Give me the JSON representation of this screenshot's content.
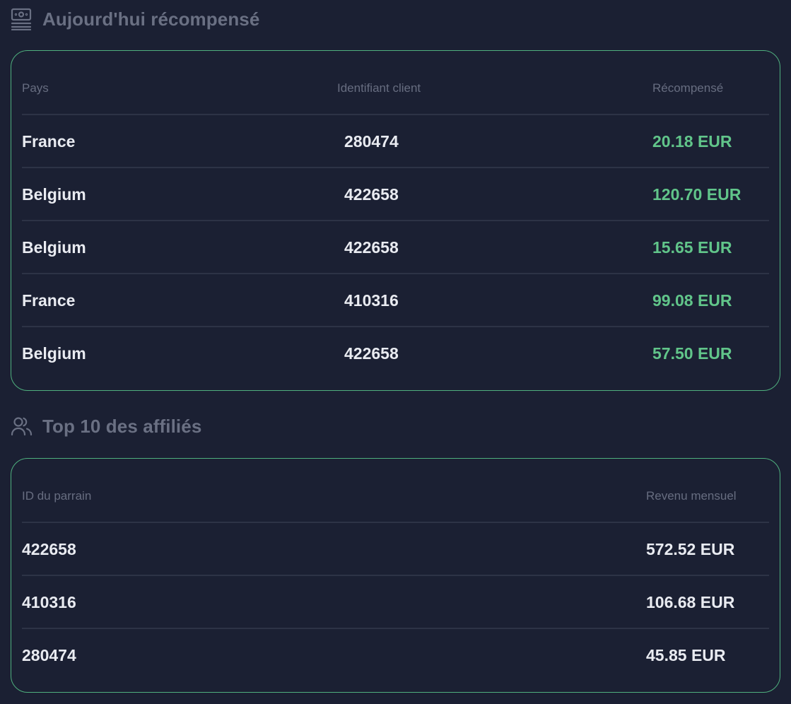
{
  "rewarded": {
    "title": "Aujourd'hui récompensé",
    "icon": "money-stack-icon",
    "columns": [
      "Pays",
      "Identifiant client",
      "Récompensé"
    ],
    "rows": [
      {
        "country": "France",
        "client_id": "280474",
        "reward": "20.18 EUR"
      },
      {
        "country": "Belgium",
        "client_id": "422658",
        "reward": "120.70 EUR"
      },
      {
        "country": "Belgium",
        "client_id": "422658",
        "reward": "15.65 EUR"
      },
      {
        "country": "France",
        "client_id": "410316",
        "reward": "99.08 EUR"
      },
      {
        "country": "Belgium",
        "client_id": "422658",
        "reward": "57.50 EUR"
      }
    ],
    "reward_color": "#61c58a"
  },
  "affiliates": {
    "title": "Top 10 des affiliés",
    "icon": "users-icon",
    "columns": [
      "ID du parrain",
      "Revenu mensuel"
    ],
    "rows": [
      {
        "sponsor_id": "422658",
        "revenue": "572.52 EUR"
      },
      {
        "sponsor_id": "410316",
        "revenue": "106.68 EUR"
      },
      {
        "sponsor_id": "280474",
        "revenue": "45.85 EUR"
      }
    ]
  },
  "colors": {
    "background": "#1b2033",
    "card_border": "#4fb07e",
    "header_text": "#6a7083"
  }
}
